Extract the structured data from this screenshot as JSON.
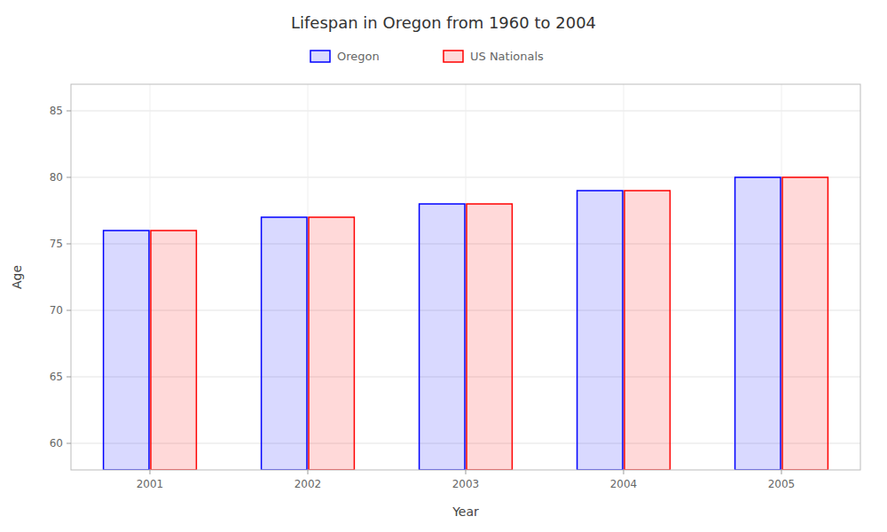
{
  "chart_data": {
    "type": "bar",
    "title": "Lifespan in Oregon from 1960 to 2004",
    "x_label": "Year",
    "y_label": "Age",
    "categories": [
      "2001",
      "2002",
      "2003",
      "2004",
      "2005"
    ],
    "series": [
      {
        "name": "Oregon",
        "color": "#0000ff",
        "values": [
          76,
          77,
          78,
          79,
          80
        ]
      },
      {
        "name": "US Nationals",
        "color": "#ff0000",
        "values": [
          76,
          77,
          78,
          79,
          80
        ]
      }
    ],
    "ylim": [
      58,
      87
    ],
    "yticks": [
      60,
      65,
      70,
      75,
      80,
      85
    ],
    "grid": true,
    "legend": "top"
  }
}
